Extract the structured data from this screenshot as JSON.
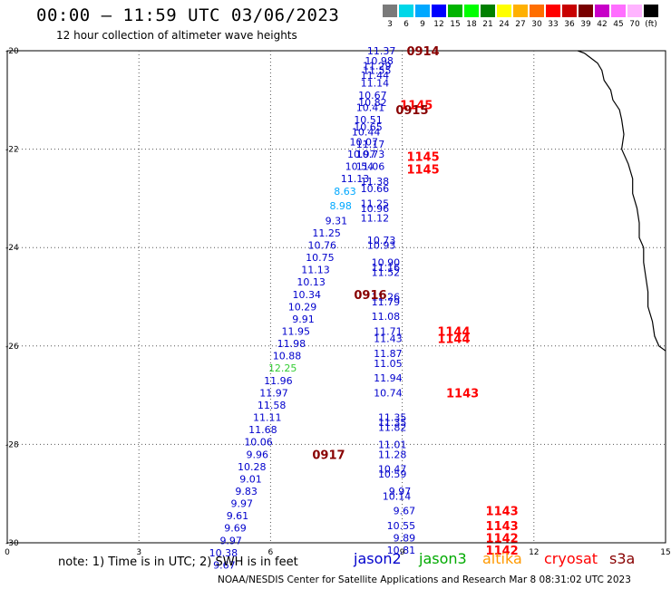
{
  "header": {
    "title": "00:00 – 11:59 UTC 03/06/2023",
    "subtitle": "12 hour collection of altimeter wave heights"
  },
  "legend_scale": {
    "labels": [
      "3",
      "6",
      "9",
      "12",
      "15",
      "18",
      "21",
      "24",
      "27",
      "30",
      "33",
      "36",
      "39",
      "42",
      "45",
      "70",
      "(ft)"
    ],
    "colors": [
      "#7a7a7a",
      "#00d7e8",
      "#00a8ff",
      "#0000ff",
      "#00b400",
      "#00ff00",
      "#008000",
      "#ffff00",
      "#ffb000",
      "#ff6e00",
      "#ff0000",
      "#c80000",
      "#780000",
      "#c800c8",
      "#ff6eff",
      "#ffb4ff",
      "#000000"
    ]
  },
  "footer": {
    "note": "note: 1) Time is in UTC; 2) SWH is in feet",
    "missions": [
      {
        "name": "jason2",
        "color": "#0000cc"
      },
      {
        "name": "jason3",
        "color": "#00aa00"
      },
      {
        "name": "altika",
        "color": "#ff9900"
      },
      {
        "name": "cryosat",
        "color": "#ff0000"
      },
      {
        "name": "s3a",
        "color": "#880000"
      }
    ],
    "credit": "NOAA/NESDIS Center for Satellite Applications and Research    Mar  8 08:31:02 UTC 2023"
  },
  "chart_data": {
    "type": "scatter",
    "title": "00:00 – 11:59 UTC 03/06/2023",
    "subtitle": "12 hour collection of altimeter wave heights",
    "xlim": [
      0,
      15
    ],
    "ylim": [
      -30,
      -20
    ],
    "x_ticks": [
      "0",
      "3",
      "6",
      "9",
      "12",
      "15"
    ],
    "y_ticks": [
      "-20",
      "-22",
      "-24",
      "-26",
      "-28",
      "-30"
    ],
    "grid": true,
    "value_colors": {
      "low": "#00a8ff",
      "mid": "#0000cc",
      "green": "#33cc33"
    },
    "track_east": [
      {
        "x": 8.85,
        "y": -20.0,
        "v": "11.37"
      },
      {
        "x": 8.8,
        "y": -20.2,
        "v": "10.98"
      },
      {
        "x": 8.75,
        "y": -20.3,
        "v": "11.29"
      },
      {
        "x": 8.75,
        "y": -20.4,
        "v": "11.55"
      },
      {
        "x": 8.7,
        "y": -20.5,
        "v": "11.44"
      },
      {
        "x": 8.7,
        "y": -20.65,
        "v": "11.14"
      },
      {
        "x": 8.65,
        "y": -20.9,
        "v": "10.67"
      },
      {
        "x": 8.65,
        "y": -21.05,
        "v": "10.82"
      },
      {
        "x": 8.6,
        "y": -21.15,
        "v": "10.41"
      },
      {
        "x": 8.55,
        "y": -21.4,
        "v": "10.51"
      },
      {
        "x": 8.55,
        "y": -21.55,
        "v": "10.65"
      },
      {
        "x": 8.5,
        "y": -21.65,
        "v": "10.44"
      },
      {
        "x": 8.45,
        "y": -21.85,
        "v": "10.07"
      },
      {
        "x": 8.6,
        "y": -21.9,
        "v": "11.17"
      },
      {
        "x": 8.4,
        "y": -22.1,
        "v": "10.97"
      },
      {
        "x": 8.6,
        "y": -22.1,
        "v": "10.73"
      },
      {
        "x": 8.35,
        "y": -22.35,
        "v": "10.54"
      },
      {
        "x": 8.6,
        "y": -22.35,
        "v": "11.06"
      },
      {
        "x": 8.25,
        "y": -22.6,
        "v": "11.13"
      },
      {
        "x": 8.7,
        "y": -22.65,
        "v": "11.38"
      },
      {
        "x": 8.7,
        "y": -22.8,
        "v": "10.66"
      },
      {
        "x": 8.7,
        "y": -23.1,
        "v": "11.25"
      },
      {
        "x": 8.7,
        "y": -23.2,
        "v": "10.96"
      },
      {
        "x": 8.7,
        "y": -23.4,
        "v": "11.12"
      },
      {
        "x": 8.85,
        "y": -23.85,
        "v": "10.73"
      },
      {
        "x": 8.85,
        "y": -23.95,
        "v": "10.93"
      },
      {
        "x": 8.95,
        "y": -24.3,
        "v": "10.90"
      },
      {
        "x": 8.95,
        "y": -24.4,
        "v": "11.16"
      },
      {
        "x": 8.95,
        "y": -24.5,
        "v": "11.52"
      },
      {
        "x": 8.95,
        "y": -25.0,
        "v": "11.26"
      },
      {
        "x": 8.95,
        "y": -25.1,
        "v": "11.79"
      },
      {
        "x": 8.95,
        "y": -25.4,
        "v": "11.08"
      },
      {
        "x": 9.0,
        "y": -25.7,
        "v": "11.71"
      },
      {
        "x": 9.0,
        "y": -25.85,
        "v": "11.43"
      },
      {
        "x": 9.0,
        "y": -26.15,
        "v": "11.87"
      },
      {
        "x": 9.0,
        "y": -26.35,
        "v": "11.05"
      },
      {
        "x": 9.0,
        "y": -26.65,
        "v": "11.94"
      },
      {
        "x": 9.0,
        "y": -26.95,
        "v": "10.74"
      },
      {
        "x": 9.1,
        "y": -27.45,
        "v": "11.35"
      },
      {
        "x": 9.1,
        "y": -27.55,
        "v": "11.35"
      },
      {
        "x": 9.1,
        "y": -27.65,
        "v": "11.82"
      },
      {
        "x": 9.1,
        "y": -28.0,
        "v": "11.01"
      },
      {
        "x": 9.1,
        "y": -28.2,
        "v": "11.28"
      },
      {
        "x": 9.1,
        "y": -28.5,
        "v": "10.47"
      },
      {
        "x": 9.1,
        "y": -28.6,
        "v": "10.59"
      },
      {
        "x": 9.2,
        "y": -28.95,
        "v": "9.97"
      },
      {
        "x": 9.2,
        "y": -29.05,
        "v": "10.14"
      },
      {
        "x": 9.3,
        "y": -29.35,
        "v": "9.67"
      },
      {
        "x": 9.3,
        "y": -29.65,
        "v": "10.55"
      },
      {
        "x": 9.3,
        "y": -29.9,
        "v": "9.89"
      },
      {
        "x": 9.3,
        "y": -30.15,
        "v": "10.81"
      }
    ],
    "track_west": [
      {
        "x": 7.95,
        "y": -22.85,
        "v": "8.63",
        "c": "low"
      },
      {
        "x": 7.85,
        "y": -23.15,
        "v": "8.98",
        "c": "low"
      },
      {
        "x": 7.75,
        "y": -23.45,
        "v": "9.31"
      },
      {
        "x": 7.6,
        "y": -23.7,
        "v": "11.25"
      },
      {
        "x": 7.5,
        "y": -23.95,
        "v": "10.76"
      },
      {
        "x": 7.45,
        "y": -24.2,
        "v": "10.75"
      },
      {
        "x": 7.35,
        "y": -24.45,
        "v": "11.13"
      },
      {
        "x": 7.25,
        "y": -24.7,
        "v": "10.13"
      },
      {
        "x": 7.15,
        "y": -24.95,
        "v": "10.34"
      },
      {
        "x": 7.05,
        "y": -25.2,
        "v": "10.29"
      },
      {
        "x": 7.0,
        "y": -25.45,
        "v": "9.91"
      },
      {
        "x": 6.9,
        "y": -25.7,
        "v": "11.95"
      },
      {
        "x": 6.8,
        "y": -25.95,
        "v": "11.98"
      },
      {
        "x": 6.7,
        "y": -26.2,
        "v": "10.88"
      },
      {
        "x": 6.6,
        "y": -26.45,
        "v": "12.25",
        "c": "green"
      },
      {
        "x": 6.5,
        "y": -26.7,
        "v": "11.96"
      },
      {
        "x": 6.4,
        "y": -26.95,
        "v": "11.97"
      },
      {
        "x": 6.35,
        "y": -27.2,
        "v": "11.58"
      },
      {
        "x": 6.25,
        "y": -27.45,
        "v": "11.11"
      },
      {
        "x": 6.15,
        "y": -27.7,
        "v": "11.68"
      },
      {
        "x": 6.05,
        "y": -27.95,
        "v": "10.06"
      },
      {
        "x": 5.95,
        "y": -28.2,
        "v": "9.96"
      },
      {
        "x": 5.9,
        "y": -28.45,
        "v": "10.28"
      },
      {
        "x": 5.8,
        "y": -28.7,
        "v": "9.01"
      },
      {
        "x": 5.7,
        "y": -28.95,
        "v": "9.83"
      },
      {
        "x": 5.6,
        "y": -29.2,
        "v": "9.97"
      },
      {
        "x": 5.5,
        "y": -29.45,
        "v": "9.61"
      },
      {
        "x": 5.45,
        "y": -29.7,
        "v": "9.69"
      },
      {
        "x": 5.35,
        "y": -29.95,
        "v": "9.97"
      },
      {
        "x": 5.25,
        "y": -30.2,
        "v": "10.38"
      },
      {
        "x": 5.2,
        "y": -30.45,
        "v": "9.67"
      }
    ],
    "time_labels": [
      {
        "x": 9.1,
        "y": -20.0,
        "v": "0914",
        "color": "#880000"
      },
      {
        "x": 8.95,
        "y": -21.1,
        "v": "1145",
        "color": "#ff0000"
      },
      {
        "x": 8.85,
        "y": -21.2,
        "v": "0915",
        "color": "#880000"
      },
      {
        "x": 9.1,
        "y": -22.15,
        "v": "1145",
        "color": "#ff0000"
      },
      {
        "x": 9.1,
        "y": -22.4,
        "v": "1145",
        "color": "#ff0000"
      },
      {
        "x": 7.9,
        "y": -24.95,
        "v": "0916",
        "color": "#880000"
      },
      {
        "x": 9.8,
        "y": -25.7,
        "v": "1144",
        "color": "#ff0000"
      },
      {
        "x": 9.8,
        "y": -25.85,
        "v": "1144",
        "color": "#ff0000"
      },
      {
        "x": 10.0,
        "y": -26.95,
        "v": "1143",
        "color": "#ff0000"
      },
      {
        "x": 6.95,
        "y": -28.2,
        "v": "0917",
        "color": "#880000"
      },
      {
        "x": 10.9,
        "y": -29.35,
        "v": "1143",
        "color": "#ff0000"
      },
      {
        "x": 10.9,
        "y": -29.65,
        "v": "1143",
        "color": "#ff0000"
      },
      {
        "x": 10.9,
        "y": -29.9,
        "v": "1142",
        "color": "#ff0000"
      },
      {
        "x": 10.9,
        "y": -30.15,
        "v": "1142",
        "color": "#ff0000"
      }
    ],
    "coastline": [
      [
        13.0,
        -20.0
      ],
      [
        13.15,
        -20.05
      ],
      [
        13.3,
        -20.15
      ],
      [
        13.45,
        -20.25
      ],
      [
        13.55,
        -20.4
      ],
      [
        13.6,
        -20.6
      ],
      [
        13.75,
        -20.8
      ],
      [
        13.8,
        -21.0
      ],
      [
        13.95,
        -21.2
      ],
      [
        14.0,
        -21.4
      ],
      [
        14.05,
        -21.7
      ],
      [
        14.0,
        -22.0
      ],
      [
        14.15,
        -22.3
      ],
      [
        14.25,
        -22.6
      ],
      [
        14.25,
        -22.9
      ],
      [
        14.35,
        -23.2
      ],
      [
        14.4,
        -23.5
      ],
      [
        14.4,
        -23.8
      ],
      [
        14.5,
        -24.0
      ],
      [
        14.5,
        -24.3
      ],
      [
        14.55,
        -24.6
      ],
      [
        14.6,
        -24.9
      ],
      [
        14.6,
        -25.2
      ],
      [
        14.7,
        -25.5
      ],
      [
        14.75,
        -25.8
      ],
      [
        14.85,
        -26.0
      ],
      [
        15.0,
        -26.1
      ]
    ]
  }
}
